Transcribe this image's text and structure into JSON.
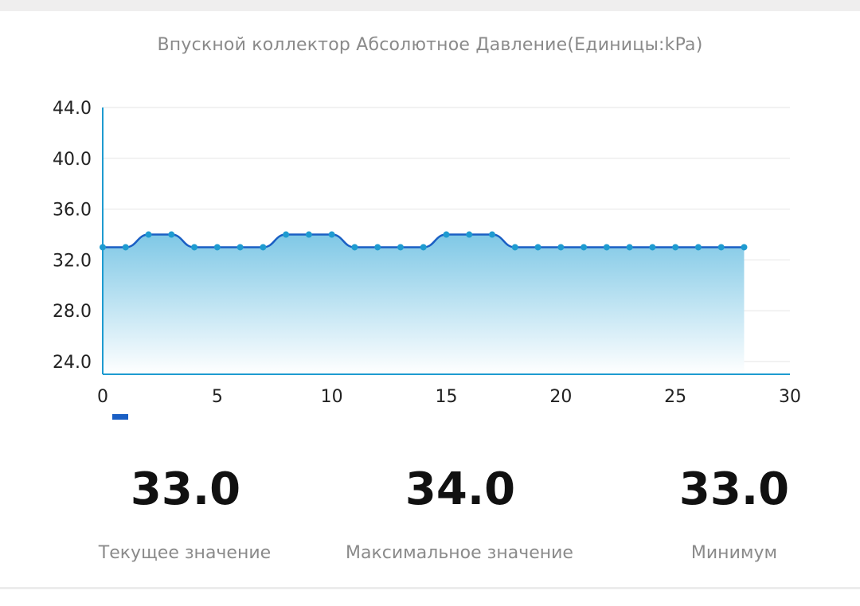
{
  "chart_data": {
    "type": "area",
    "title": "Впускной коллектор Абсолютное Давление(Единицы:kPa)",
    "xlabel": "",
    "ylabel": "",
    "x": [
      0,
      1,
      2,
      3,
      4,
      5,
      6,
      7,
      8,
      9,
      10,
      11,
      12,
      13,
      14,
      15,
      16,
      17,
      18,
      19,
      20,
      21,
      22,
      23,
      24,
      25,
      26,
      27,
      28
    ],
    "series": [
      {
        "values": [
          33,
          33,
          34,
          34,
          33,
          33,
          33,
          33,
          34,
          34,
          34,
          33,
          33,
          33,
          33,
          34,
          34,
          34,
          33,
          33,
          33,
          33,
          33,
          33,
          33,
          33,
          33,
          33,
          33
        ]
      }
    ],
    "xlim": [
      0,
      30
    ],
    "ylim": [
      23,
      44
    ],
    "xticks": [
      "0",
      "5",
      "10",
      "15",
      "20",
      "25",
      "30"
    ],
    "yticks": [
      "24.0",
      "28.0",
      "32.0",
      "36.0",
      "40.0",
      "44.0"
    ],
    "grid": true,
    "legend": "bottom-left",
    "colors": {
      "line": "#1a5fc4",
      "marker": "#1e9bd0",
      "fill_top": "#7fc8e6",
      "fill_bottom": "#ffffff",
      "axis": "#1e9bd0",
      "grid": "#e6e6e6",
      "legend": "#1a5fc4"
    }
  },
  "stats": {
    "current": {
      "value": "33.0",
      "label": "Текущее значение"
    },
    "max": {
      "value": "34.0",
      "label": "Максимальное значение"
    },
    "min": {
      "value": "33.0",
      "label": "Минимум"
    }
  }
}
